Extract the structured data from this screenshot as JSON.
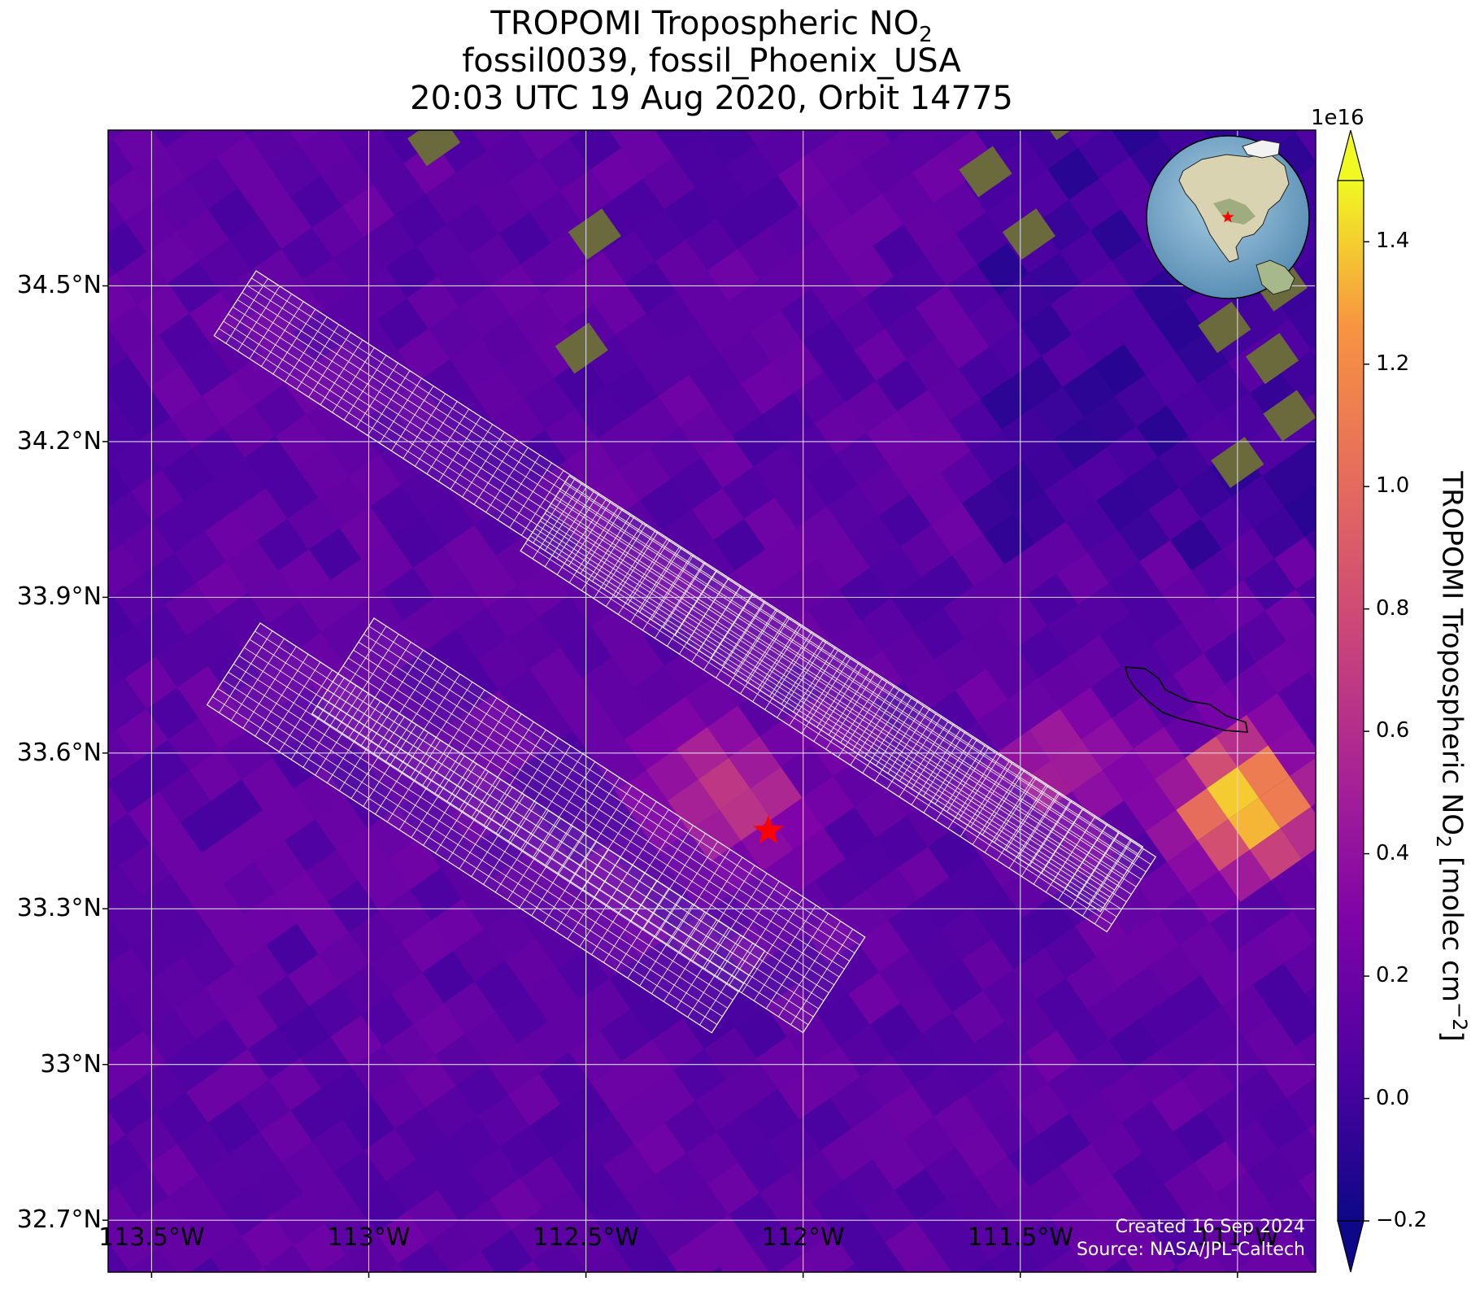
{
  "title": {
    "line1_prefix": "TROPOMI Tropospheric NO",
    "line1_sub": "2",
    "line2": "fossil0039, fossil_Phoenix_USA",
    "line3": "20:03 UTC 19 Aug 2020, Orbit 14775"
  },
  "map": {
    "lon_range": [
      -113.6,
      -110.82
    ],
    "lat_range": [
      32.6,
      34.8
    ],
    "target_marker": {
      "lon": -112.08,
      "lat": 33.45,
      "symbol": "star",
      "color": "#ff0000"
    },
    "inset_globe": {
      "marker": "star",
      "marker_color": "#ff0000"
    },
    "lon_ticks": [
      {
        "value": -113.5,
        "label": "113.5°W"
      },
      {
        "value": -113.0,
        "label": "113°W"
      },
      {
        "value": -112.5,
        "label": "112.5°W"
      },
      {
        "value": -112.0,
        "label": "112°W"
      },
      {
        "value": -111.5,
        "label": "111.5°W"
      },
      {
        "value": -111.0,
        "label": "111°W"
      }
    ],
    "lat_ticks": [
      {
        "value": 32.7,
        "label": "32.7°N"
      },
      {
        "value": 33.0,
        "label": "33°N"
      },
      {
        "value": 33.3,
        "label": "33.3°N"
      },
      {
        "value": 33.6,
        "label": "33.6°N"
      },
      {
        "value": 33.9,
        "label": "33.9°N"
      },
      {
        "value": 34.2,
        "label": "34.2°N"
      },
      {
        "value": 34.5,
        "label": "34.5°N"
      }
    ],
    "gridlines": true,
    "grid_color": "#d8d8e6",
    "colormap": "plasma",
    "hotspots": [
      {
        "lon": -112.17,
        "lat": 33.53,
        "value": 0.75
      },
      {
        "lon": -110.98,
        "lat": 33.5,
        "value": 1.45
      },
      {
        "lon": -111.4,
        "lat": 33.58,
        "value": 0.55
      }
    ],
    "overlay": "white pixel-grid footprints over plume area"
  },
  "colorbar": {
    "exponent_label": "1e16",
    "label_prefix": "TROPOMI Tropospheric NO",
    "label_sub": "2",
    "label_mid": " [molec cm",
    "label_sup": "−2",
    "label_end": "]",
    "vmin": -0.2,
    "vmax": 1.5,
    "extend": "both",
    "ticks": [
      {
        "value": -0.2,
        "label": "−0.2"
      },
      {
        "value": 0.0,
        "label": "0.0"
      },
      {
        "value": 0.2,
        "label": "0.2"
      },
      {
        "value": 0.4,
        "label": "0.4"
      },
      {
        "value": 0.6,
        "label": "0.6"
      },
      {
        "value": 0.8,
        "label": "0.8"
      },
      {
        "value": 1.0,
        "label": "1.0"
      },
      {
        "value": 1.2,
        "label": "1.2"
      },
      {
        "value": 1.4,
        "label": "1.4"
      }
    ]
  },
  "credits": {
    "created": "Created 16 Sep 2024",
    "source": "Source: NASA/JPL-Caltech"
  }
}
